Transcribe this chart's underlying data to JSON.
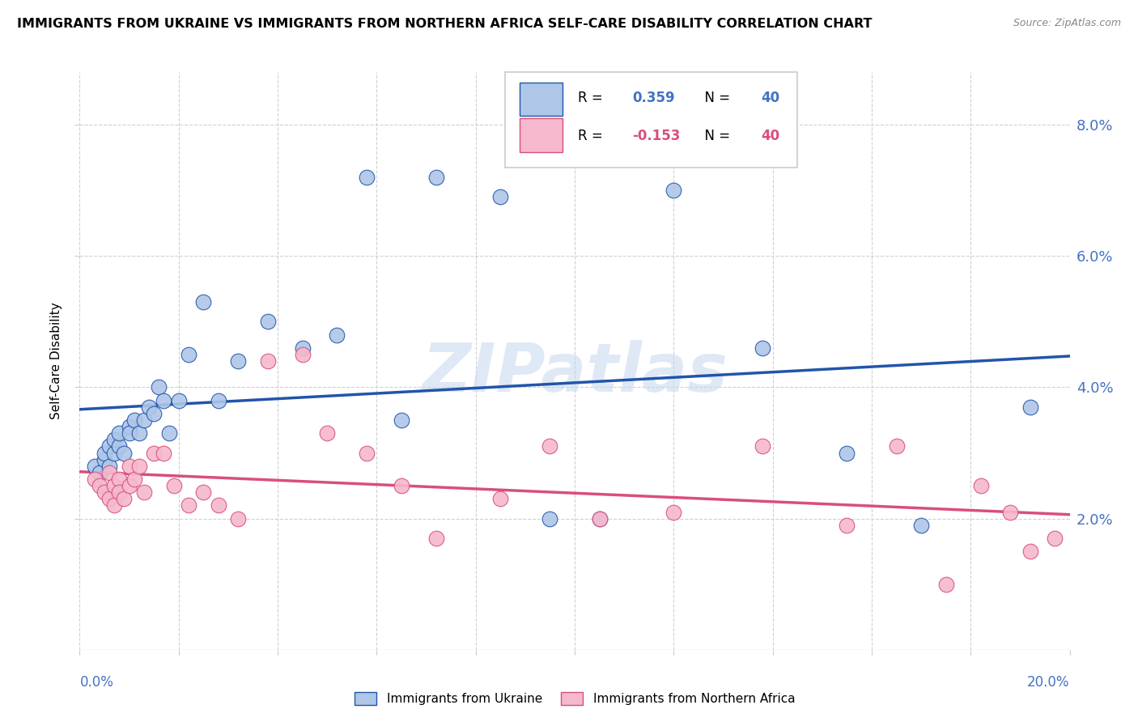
{
  "title": "IMMIGRANTS FROM UKRAINE VS IMMIGRANTS FROM NORTHERN AFRICA SELF-CARE DISABILITY CORRELATION CHART",
  "source": "Source: ZipAtlas.com",
  "ylabel": "Self-Care Disability",
  "xlim": [
    0.0,
    0.2
  ],
  "ylim": [
    0.0,
    0.088
  ],
  "yticks": [
    0.02,
    0.04,
    0.06,
    0.08
  ],
  "ytick_labels": [
    "2.0%",
    "4.0%",
    "6.0%",
    "8.0%"
  ],
  "ukraine_color": "#aec6e8",
  "ukraine_line_color": "#2255aa",
  "north_africa_color": "#f5b8cc",
  "north_africa_line_color": "#d94f7a",
  "watermark": "ZIPatlas",
  "ukraine_x": [
    0.003,
    0.004,
    0.005,
    0.005,
    0.006,
    0.006,
    0.007,
    0.007,
    0.008,
    0.008,
    0.009,
    0.01,
    0.01,
    0.011,
    0.012,
    0.013,
    0.014,
    0.015,
    0.016,
    0.017,
    0.018,
    0.02,
    0.022,
    0.025,
    0.028,
    0.032,
    0.038,
    0.045,
    0.052,
    0.058,
    0.065,
    0.072,
    0.085,
    0.095,
    0.105,
    0.12,
    0.138,
    0.155,
    0.17,
    0.192
  ],
  "ukraine_y": [
    0.028,
    0.027,
    0.029,
    0.03,
    0.028,
    0.031,
    0.03,
    0.032,
    0.031,
    0.033,
    0.03,
    0.034,
    0.033,
    0.035,
    0.033,
    0.035,
    0.037,
    0.036,
    0.04,
    0.038,
    0.033,
    0.038,
    0.045,
    0.053,
    0.038,
    0.044,
    0.05,
    0.046,
    0.048,
    0.072,
    0.035,
    0.072,
    0.069,
    0.02,
    0.02,
    0.07,
    0.046,
    0.03,
    0.019,
    0.037
  ],
  "north_africa_x": [
    0.003,
    0.004,
    0.005,
    0.006,
    0.006,
    0.007,
    0.007,
    0.008,
    0.008,
    0.009,
    0.01,
    0.01,
    0.011,
    0.012,
    0.013,
    0.015,
    0.017,
    0.019,
    0.022,
    0.025,
    0.028,
    0.032,
    0.038,
    0.045,
    0.05,
    0.058,
    0.065,
    0.072,
    0.085,
    0.095,
    0.105,
    0.12,
    0.138,
    0.155,
    0.165,
    0.175,
    0.182,
    0.188,
    0.192,
    0.197
  ],
  "north_africa_y": [
    0.026,
    0.025,
    0.024,
    0.027,
    0.023,
    0.025,
    0.022,
    0.026,
    0.024,
    0.023,
    0.028,
    0.025,
    0.026,
    0.028,
    0.024,
    0.03,
    0.03,
    0.025,
    0.022,
    0.024,
    0.022,
    0.02,
    0.044,
    0.045,
    0.033,
    0.03,
    0.025,
    0.017,
    0.023,
    0.031,
    0.02,
    0.021,
    0.031,
    0.019,
    0.031,
    0.01,
    0.025,
    0.021,
    0.015,
    0.017
  ]
}
